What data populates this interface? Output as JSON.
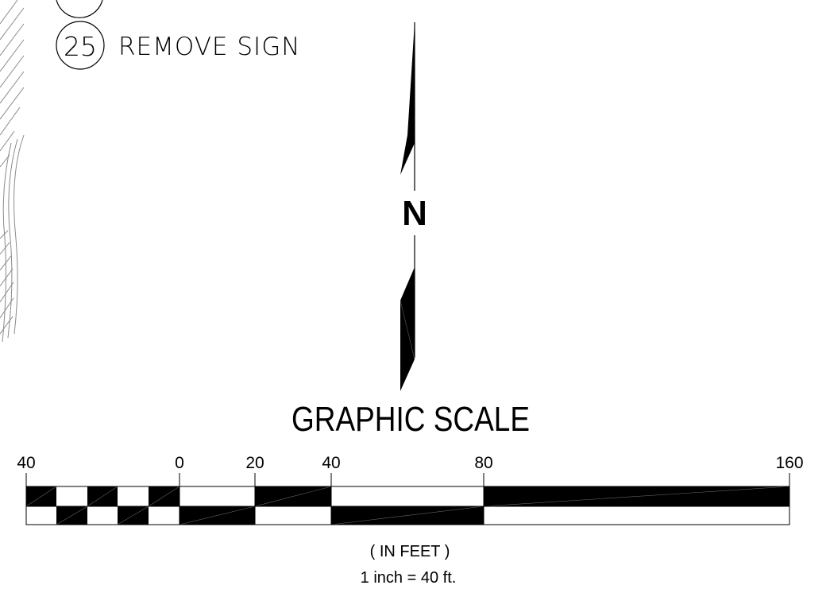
{
  "legend": {
    "item_number": "25",
    "item_label": "REMOVE SIGN"
  },
  "north_arrow": {
    "letter": "N"
  },
  "graphic_scale": {
    "title": "GRAPHIC SCALE",
    "tick_labels": [
      "40",
      "0",
      "20",
      "40",
      "80",
      "160"
    ],
    "units": "( IN FEET )",
    "ratio": "1 inch = 40 ft."
  },
  "colors": {
    "ink": "#000000",
    "paper": "#ffffff",
    "hatch": "#8a8a8a"
  }
}
